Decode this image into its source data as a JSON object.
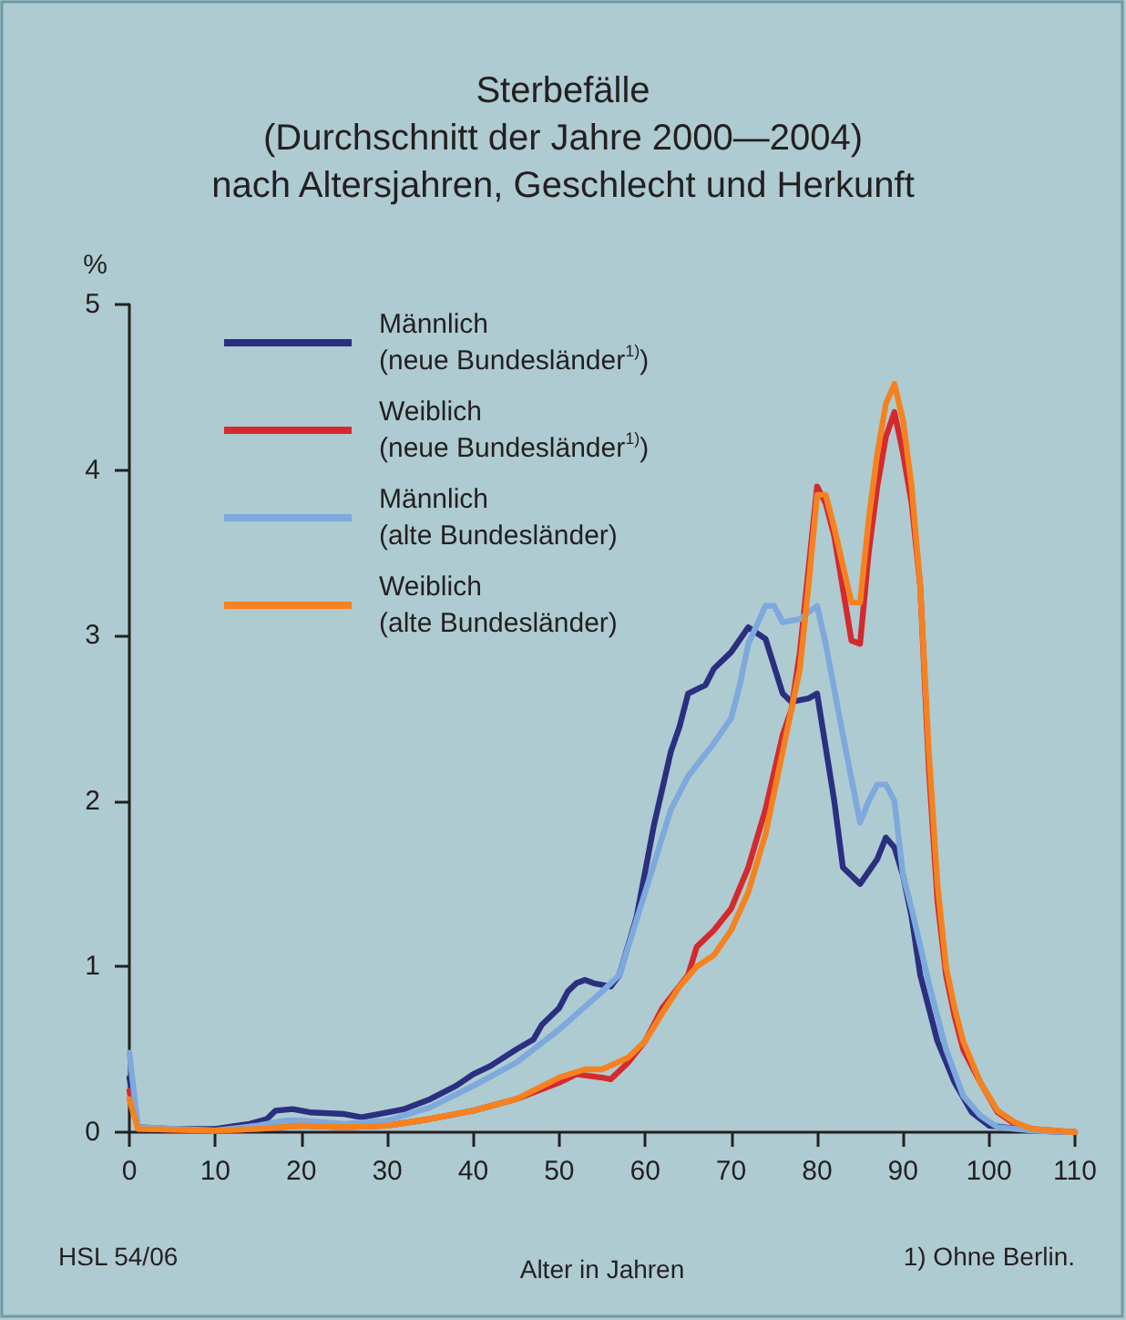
{
  "chart_data": {
    "type": "line",
    "title": "Sterbefälle\n(Durchschnitt der Jahre 2000—2004)\nnach Altersjahren, Geschlecht und Herkunft",
    "xlabel": "Alter in Jahren",
    "ylabel": "%",
    "annotations": [
      "HSL 54/06",
      "1) Ohne Berlin."
    ],
    "xlim": [
      0,
      110
    ],
    "xticks": [
      0,
      10,
      20,
      30,
      40,
      50,
      60,
      70,
      80,
      90,
      100,
      110
    ],
    "ylim": [
      0,
      5
    ],
    "yticks": [
      0,
      1,
      2,
      3,
      4,
      5
    ],
    "grid": false,
    "legend": "top left",
    "marker": "none",
    "line_style": "solid",
    "series": [
      {
        "name": "Männlich\n(neue Bundesländer$^{1)}$)",
        "color": "#2b2f7f",
        "x": [
          0,
          1,
          5,
          10,
          14,
          16,
          17,
          19,
          21,
          25,
          27,
          29,
          32,
          35,
          38,
          40,
          42,
          45,
          47,
          48,
          50,
          51,
          52,
          53,
          54,
          56,
          57,
          59,
          61,
          63,
          64,
          65,
          67,
          68,
          70,
          72,
          74,
          76,
          77,
          79,
          80,
          82,
          83,
          85,
          87,
          88,
          89,
          90,
          91,
          92,
          94,
          96,
          98,
          100,
          105,
          110
        ],
        "values": [
          0.33,
          0.03,
          0.02,
          0.02,
          0.05,
          0.08,
          0.13,
          0.14,
          0.12,
          0.11,
          0.09,
          0.11,
          0.14,
          0.2,
          0.28,
          0.35,
          0.4,
          0.5,
          0.56,
          0.65,
          0.75,
          0.85,
          0.9,
          0.92,
          0.9,
          0.88,
          0.95,
          1.3,
          1.85,
          2.3,
          2.45,
          2.65,
          2.7,
          2.8,
          2.9,
          3.05,
          2.98,
          2.65,
          2.6,
          2.62,
          2.65,
          2.0,
          1.6,
          1.5,
          1.65,
          1.78,
          1.72,
          1.55,
          1.3,
          0.95,
          0.55,
          0.3,
          0.12,
          0.04,
          0.01,
          0
        ]
      },
      {
        "name": "Weiblich\n(neue Bundesländer$^{1)}$)",
        "color": "#d42a2e",
        "x": [
          0,
          1,
          10,
          15,
          20,
          25,
          30,
          35,
          40,
          45,
          50,
          52,
          55,
          56,
          58,
          60,
          62,
          65,
          66,
          68,
          70,
          72,
          74,
          76,
          77,
          78,
          79,
          80,
          81,
          82,
          84,
          85,
          86,
          87,
          88,
          89,
          90,
          91,
          92,
          93,
          94,
          95,
          96,
          97,
          99,
          101,
          103,
          105,
          110
        ],
        "values": [
          0.25,
          0.02,
          0.01,
          0.02,
          0.04,
          0.03,
          0.04,
          0.08,
          0.13,
          0.2,
          0.3,
          0.35,
          0.33,
          0.32,
          0.42,
          0.55,
          0.75,
          0.95,
          1.12,
          1.22,
          1.35,
          1.6,
          1.95,
          2.4,
          2.55,
          2.9,
          3.4,
          3.9,
          3.8,
          3.6,
          2.97,
          2.95,
          3.5,
          3.9,
          4.2,
          4.35,
          4.1,
          3.8,
          3.3,
          2.2,
          1.4,
          0.95,
          0.7,
          0.5,
          0.3,
          0.12,
          0.05,
          0.02,
          0
        ]
      },
      {
        "name": "Männlich\n(alte Bundesländer)",
        "color": "#7ea9dc",
        "x": [
          0,
          1,
          10,
          15,
          18,
          20,
          25,
          30,
          35,
          40,
          45,
          50,
          55,
          57,
          60,
          63,
          65,
          68,
          70,
          71,
          72,
          74,
          75,
          76,
          78,
          80,
          81,
          83,
          85,
          86,
          87,
          88,
          89,
          90,
          91,
          93,
          95,
          97,
          99,
          101,
          105,
          110
        ],
        "values": [
          0.48,
          0.03,
          0.01,
          0.04,
          0.07,
          0.07,
          0.05,
          0.07,
          0.15,
          0.28,
          0.42,
          0.62,
          0.85,
          0.95,
          1.45,
          1.95,
          2.15,
          2.35,
          2.5,
          2.7,
          2.95,
          3.18,
          3.18,
          3.08,
          3.1,
          3.18,
          2.95,
          2.4,
          1.87,
          2.0,
          2.1,
          2.1,
          2.0,
          1.55,
          1.35,
          0.9,
          0.5,
          0.22,
          0.1,
          0.03,
          0.01,
          0
        ]
      },
      {
        "name": "Weiblich\n(alte Bundesländer)",
        "color": "#f58220",
        "x": [
          0,
          1,
          10,
          15,
          20,
          25,
          30,
          35,
          40,
          45,
          50,
          53,
          55,
          58,
          60,
          62,
          64,
          66,
          68,
          70,
          72,
          74,
          76,
          78,
          79,
          80,
          81,
          82,
          84,
          85,
          86,
          87,
          88,
          89,
          90,
          91,
          92,
          93,
          94,
          95,
          96,
          97,
          99,
          101,
          103,
          105,
          110
        ],
        "values": [
          0.2,
          0.02,
          0.01,
          0.02,
          0.04,
          0.03,
          0.04,
          0.08,
          0.13,
          0.2,
          0.33,
          0.38,
          0.38,
          0.45,
          0.55,
          0.72,
          0.88,
          1.0,
          1.07,
          1.22,
          1.45,
          1.8,
          2.3,
          2.8,
          3.3,
          3.85,
          3.85,
          3.65,
          3.2,
          3.2,
          3.7,
          4.1,
          4.4,
          4.52,
          4.3,
          3.9,
          3.3,
          2.3,
          1.5,
          1.0,
          0.75,
          0.55,
          0.3,
          0.13,
          0.06,
          0.02,
          0
        ]
      }
    ]
  }
}
